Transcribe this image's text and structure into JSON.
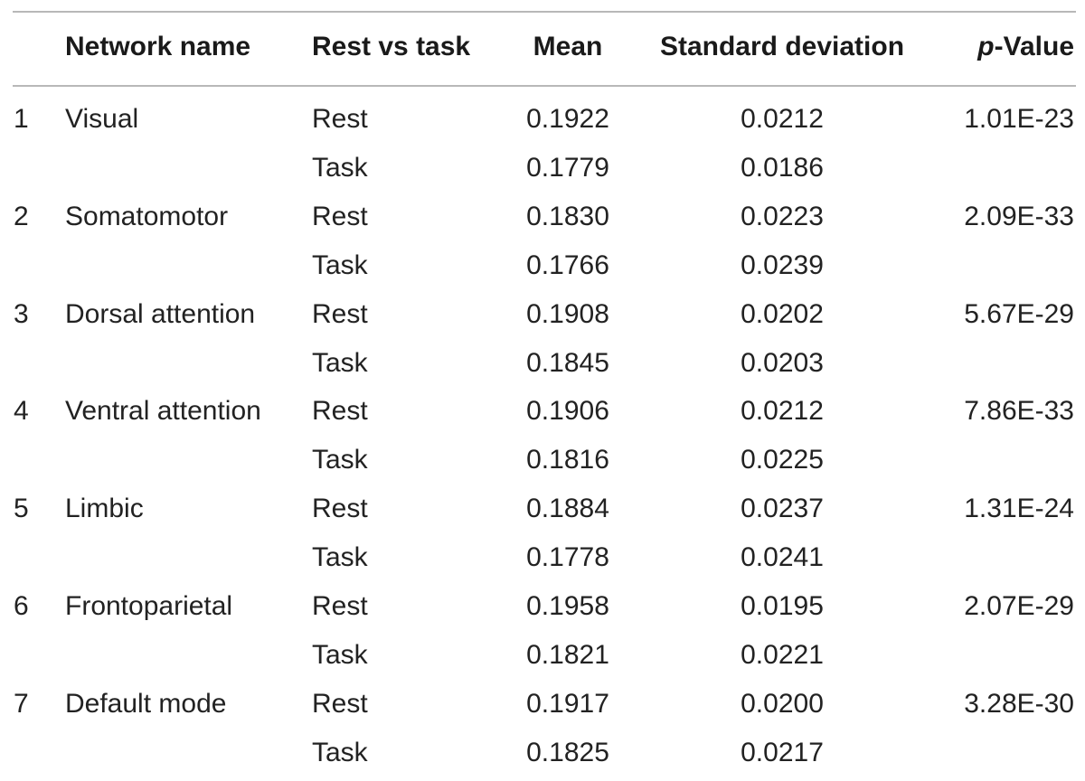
{
  "table": {
    "headers": {
      "network_name": "Network name",
      "rest_vs_task": "Rest vs task",
      "mean": "Mean",
      "sd": "Standard deviation",
      "p_italic": "p",
      "p_rest": "-Value"
    },
    "rows": [
      {
        "num": "1",
        "name": "Visual",
        "condition": "Rest",
        "mean": "0.1922",
        "sd": "0.0212",
        "p": "1.01E-23"
      },
      {
        "num": "",
        "name": "",
        "condition": "Task",
        "mean": "0.1779",
        "sd": "0.0186",
        "p": ""
      },
      {
        "num": "2",
        "name": "Somatomotor",
        "condition": "Rest",
        "mean": "0.1830",
        "sd": "0.0223",
        "p": "2.09E-33"
      },
      {
        "num": "",
        "name": "",
        "condition": "Task",
        "mean": "0.1766",
        "sd": "0.0239",
        "p": ""
      },
      {
        "num": "3",
        "name": "Dorsal attention",
        "condition": "Rest",
        "mean": "0.1908",
        "sd": "0.0202",
        "p": "5.67E-29"
      },
      {
        "num": "",
        "name": "",
        "condition": "Task",
        "mean": "0.1845",
        "sd": "0.0203",
        "p": ""
      },
      {
        "num": "4",
        "name": "Ventral attention",
        "condition": "Rest",
        "mean": "0.1906",
        "sd": "0.0212",
        "p": "7.86E-33"
      },
      {
        "num": "",
        "name": "",
        "condition": "Task",
        "mean": "0.1816",
        "sd": "0.0225",
        "p": ""
      },
      {
        "num": "5",
        "name": "Limbic",
        "condition": "Rest",
        "mean": "0.1884",
        "sd": "0.0237",
        "p": "1.31E-24"
      },
      {
        "num": "",
        "name": "",
        "condition": "Task",
        "mean": "0.1778",
        "sd": "0.0241",
        "p": ""
      },
      {
        "num": "6",
        "name": "Frontoparietal",
        "condition": "Rest",
        "mean": "0.1958",
        "sd": "0.0195",
        "p": "2.07E-29"
      },
      {
        "num": "",
        "name": "",
        "condition": "Task",
        "mean": "0.1821",
        "sd": "0.0221",
        "p": ""
      },
      {
        "num": "7",
        "name": "Default mode",
        "condition": "Rest",
        "mean": "0.1917",
        "sd": "0.0200",
        "p": "3.28E-30"
      },
      {
        "num": "",
        "name": "",
        "condition": "Task",
        "mean": "0.1825",
        "sd": "0.0217",
        "p": ""
      }
    ]
  }
}
